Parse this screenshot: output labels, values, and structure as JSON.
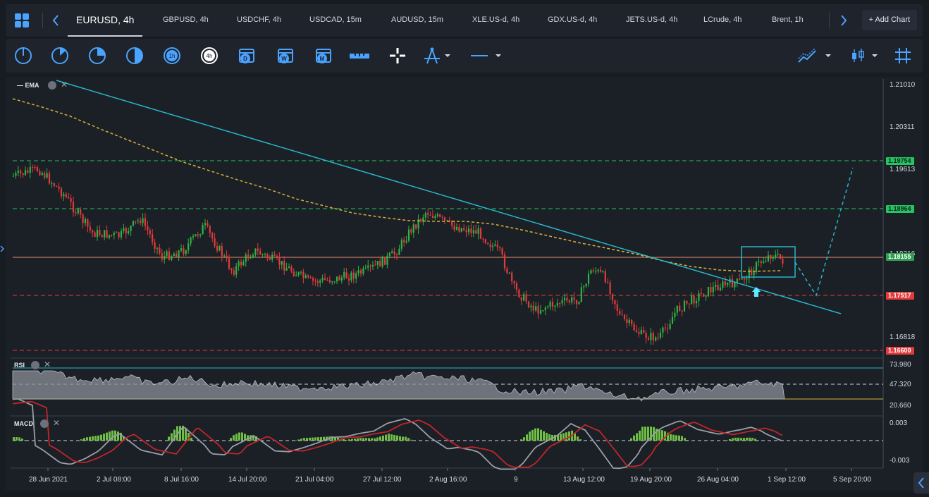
{
  "tabs": [
    {
      "label": "EURUSD, 4h"
    },
    {
      "label": "GBPUSD, 4h"
    },
    {
      "label": "USDCHF, 4h"
    },
    {
      "label": "USDCAD, 15m"
    },
    {
      "label": "AUDUSD, 15m"
    },
    {
      "label": "XLE.US-d, 4h"
    },
    {
      "label": "GDX.US-d, 4h"
    },
    {
      "label": "JETS.US-d, 4h"
    },
    {
      "label": "LCrude, 4h"
    },
    {
      "label": "Brent, 1h"
    }
  ],
  "add_chart_label": "+ Add Chart",
  "timeframe_buttons": [
    "1m",
    "5m",
    "15m",
    "30m",
    "1h",
    "4h",
    "D",
    "W",
    "M"
  ],
  "panes": {
    "main": "EMA",
    "rsi": "RSI",
    "macd": "MACD"
  },
  "price_axis": [
    "1.21010",
    "1.20311",
    "1.19613",
    "1.18216",
    "1.16818"
  ],
  "price_tags": [
    {
      "label": "1.19754",
      "color": "#22c55e"
    },
    {
      "label": "1.18964",
      "color": "#22c55e"
    },
    {
      "label": "1.18155",
      "color": "#2e9e4f"
    },
    {
      "label": "1.17517",
      "color": "#e23b3b"
    },
    {
      "label": "1.16600",
      "color": "#e23b3b"
    }
  ],
  "rsi_axis": [
    "73.980",
    "47.320",
    "20.660"
  ],
  "macd_axis": [
    "0.003",
    "-0.003"
  ],
  "time_axis": [
    "28 Jun 2021",
    "2 Jul 08:00",
    "8 Jul 16:00",
    "14 Jul 20:00",
    "21 Jul 04:00",
    "27 Jul 12:00",
    "2 Aug 16:00",
    "9",
    "13 Aug 12:00",
    "19 Aug 20:00",
    "26 Aug 04:00",
    "1 Sep 12:00",
    "5 Sep 20:00"
  ],
  "colors": {
    "up": "#2fb344",
    "down": "#e23b3b",
    "ema": "#d9b13a",
    "trend": "#27b6c9"
  },
  "chart_data": {
    "type": "candlestick",
    "symbol": "EURUSD",
    "timeframe": "4h",
    "ylim": [
      1.166,
      1.2101
    ],
    "horizontal_levels": [
      1.19754,
      1.18964,
      1.18155,
      1.17517,
      1.166
    ],
    "indicators": [
      "EMA",
      "RSI",
      "MACD"
    ],
    "rsi_levels": [
      73.98,
      47.32,
      20.66
    ],
    "macd_range": [
      -0.003,
      0.003
    ],
    "x_ticks": [
      "28 Jun 2021",
      "2 Jul 08:00",
      "8 Jul 16:00",
      "14 Jul 20:00",
      "21 Jul 04:00",
      "27 Jul 12:00",
      "2 Aug 16:00",
      "9",
      "13 Aug 12:00",
      "19 Aug 20:00",
      "26 Aug 04:00",
      "1 Sep 12:00",
      "5 Sep 20:00"
    ]
  }
}
